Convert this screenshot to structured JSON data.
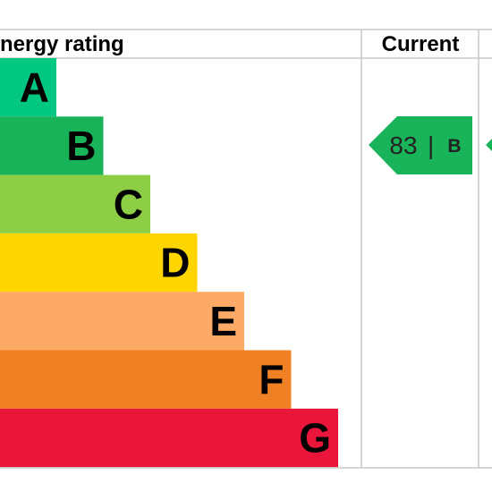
{
  "header": {
    "rating_title": "nergy rating",
    "current_title": "Current"
  },
  "chart_data": {
    "type": "bar",
    "categories": [
      "A",
      "B",
      "C",
      "D",
      "E",
      "F",
      "G"
    ],
    "colors": [
      "#00c781",
      "#19b459",
      "#8dce46",
      "#ffd500",
      "#fcaa65",
      "#ef8023",
      "#e9153b"
    ],
    "current": {
      "value": "83",
      "letter": "B",
      "color": "#19b459"
    },
    "potential": {
      "color": "#19b459"
    }
  }
}
